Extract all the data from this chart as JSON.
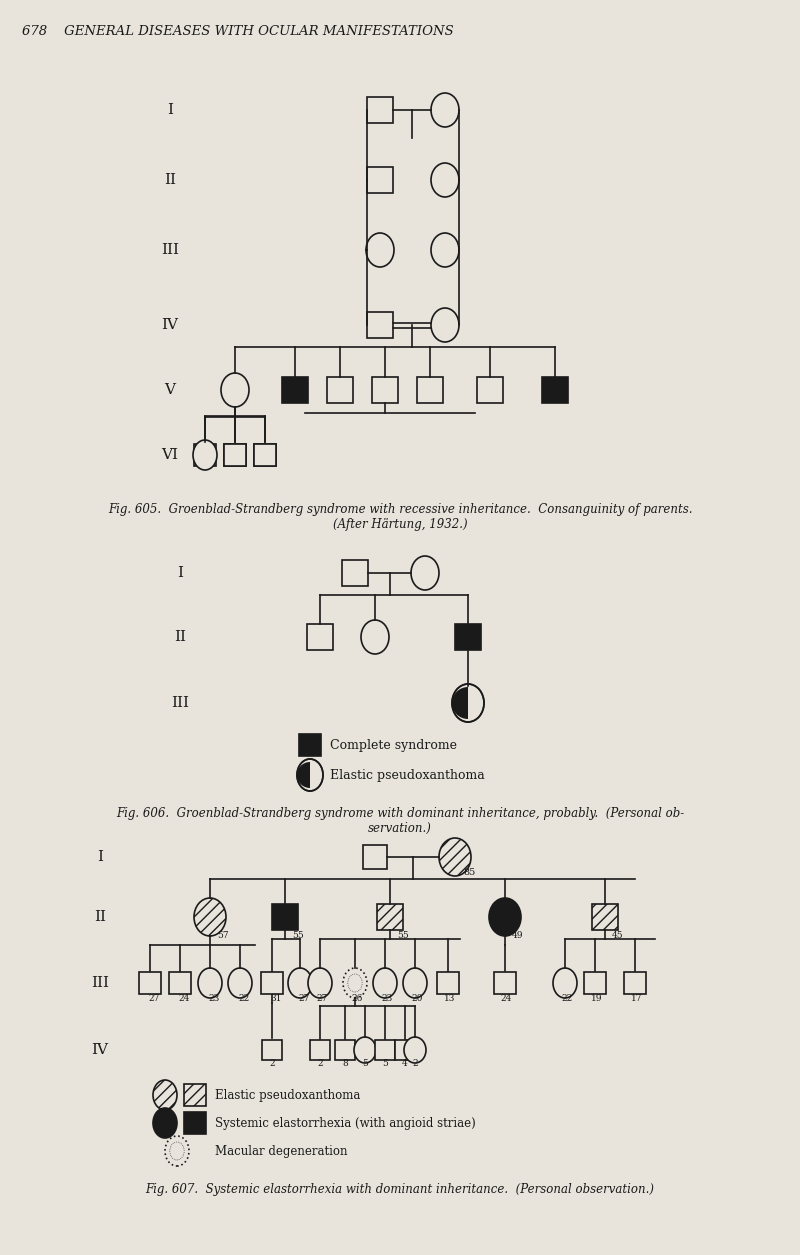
{
  "bg_color": "#e8e4dc",
  "line_color": "#1a1a1a",
  "page_title": "678    GENERAL DISEASES WITH OCULAR MANIFESTATIONS",
  "fig605_caption": "Fig. 605.  Groenblad-Strandberg syndrome with recessive inheritance.  Consanguinity of parents.\n(After Härtung, 1932.)",
  "fig606_caption": "Fig. 606.  Groenblad-Strandberg syndrome with dominant inheritance, probably.  (Personal ob-\nservation.)",
  "fig607_caption": "Fig. 607.  Systemic elastorrhexia with dominant inheritance.  (Personal observation.)"
}
